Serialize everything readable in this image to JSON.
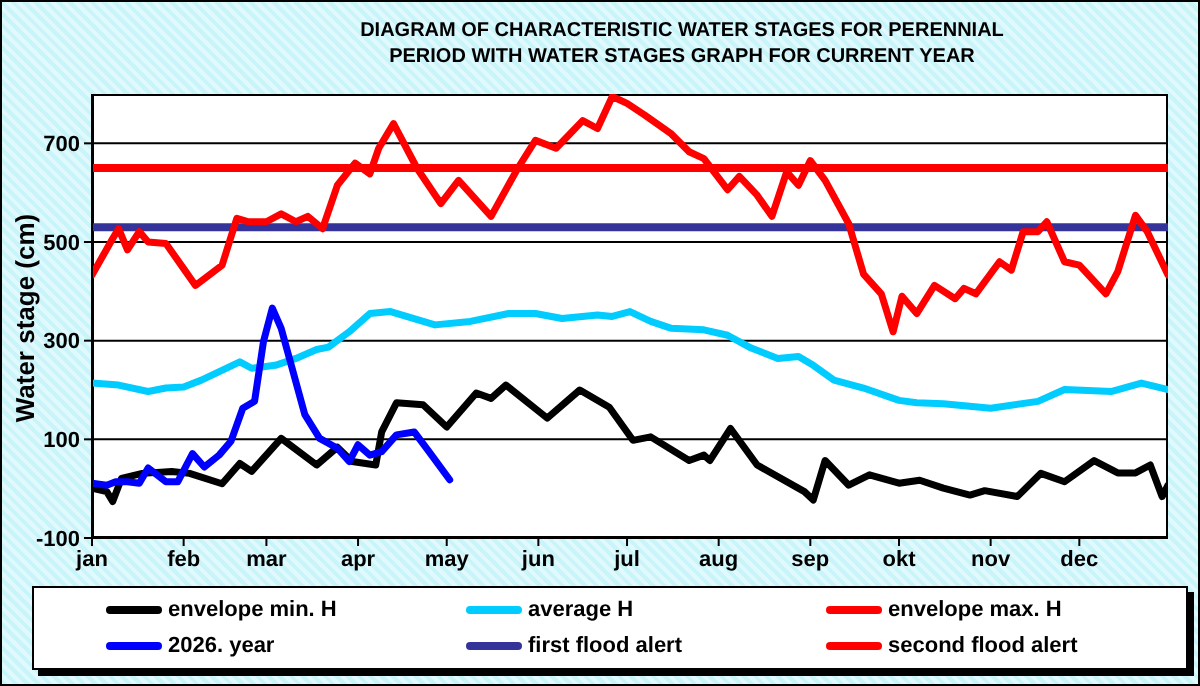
{
  "chart_data": {
    "type": "line",
    "title": "DIAGRAM OF CHARACTERISTIC WATER STAGES FOR PERENNIAL PERIOD WITH WATER STAGES GRAPH FOR CURRENT YEAR",
    "ylabel": "Water stage (cm)",
    "xlim": [
      "--01-01",
      "--12-31"
    ],
    "xticks": [
      {
        "value": "--01-01",
        "label": "jan"
      },
      {
        "value": "--02-01",
        "label": "feb"
      },
      {
        "value": "--03-01",
        "label": "mar"
      },
      {
        "value": "--04-01",
        "label": "apr"
      },
      {
        "value": "--05-01",
        "label": "may"
      },
      {
        "value": "--06-01",
        "label": "jun"
      },
      {
        "value": "--07-01",
        "label": "jul"
      },
      {
        "value": "--08-01",
        "label": "aug"
      },
      {
        "value": "--09-01",
        "label": "sep"
      },
      {
        "value": "--10-01",
        "label": "okt"
      },
      {
        "value": "--11-01",
        "label": "nov"
      },
      {
        "value": "--12-01",
        "label": "dec"
      }
    ],
    "ylim": [
      -100,
      800
    ],
    "yticks": [
      -100,
      100,
      300,
      500,
      700
    ],
    "grid": "y",
    "legend": "bottom",
    "marker": "none",
    "line_style": "solid",
    "series": [
      {
        "name": "envelope min. H",
        "color": "#000000",
        "x": [
          "--01-01",
          "--01-06",
          "--01-08",
          "--01-11",
          "--01-18",
          "--01-28",
          "--02-03",
          "--02-14",
          "--02-20",
          "--02-24",
          "--03-06",
          "--03-18",
          "--03-25",
          "--03-30",
          "--04-07",
          "--04-09",
          "--04-14",
          "--04-23",
          "--05-01",
          "--05-11",
          "--05-16",
          "--05-21",
          "--06-04",
          "--06-15",
          "--06-25",
          "--07-03",
          "--07-09",
          "--07-22",
          "--07-27",
          "--07-29",
          "--08-05",
          "--08-14",
          "--08-30",
          "--09-02",
          "--09-06",
          "--09-14",
          "--09-21",
          "--10-01",
          "--10-08",
          "--10-16",
          "--10-25",
          "--10-30",
          "--11-10",
          "--11-18",
          "--11-26",
          "--12-06",
          "--12-14",
          "--12-20",
          "--12-25",
          "--12-29",
          "--12-31"
        ],
        "values": [
          1,
          -6,
          -26,
          21,
          31,
          35,
          31,
          10,
          51,
          35,
          102,
          48,
          84,
          55,
          48,
          115,
          174,
          170,
          125,
          194,
          183,
          210,
          143,
          200,
          165,
          98,
          105,
          57,
          68,
          57,
          122,
          48,
          -6,
          -23,
          57,
          7,
          28,
          11,
          17,
          1,
          -13,
          -4,
          -16,
          31,
          14,
          57,
          32,
          32,
          48,
          -16,
          7
        ]
      },
      {
        "name": "average H",
        "color": "#00ccff",
        "x": [
          "--01-01",
          "--01-10",
          "--01-20",
          "--01-26",
          "--02-01",
          "--02-07",
          "--02-20",
          "--02-24",
          "--03-04",
          "--03-11",
          "--03-18",
          "--03-22",
          "--03-29",
          "--04-05",
          "--04-12",
          "--04-27",
          "--05-09",
          "--05-22",
          "--05-31",
          "--06-09",
          "--06-21",
          "--06-26",
          "--07-02",
          "--07-09",
          "--07-16",
          "--07-27",
          "--08-04",
          "--08-12",
          "--08-21",
          "--08-28",
          "--09-02",
          "--09-09",
          "--09-19",
          "--10-01",
          "--10-07",
          "--10-16",
          "--11-01",
          "--11-17",
          "--11-26",
          "--12-12",
          "--12-22",
          "--12-31"
        ],
        "values": [
          214,
          210,
          197,
          204,
          206,
          220,
          257,
          244,
          250,
          264,
          282,
          287,
          318,
          355,
          359,
          332,
          339,
          355,
          355,
          345,
          352,
          349,
          359,
          339,
          325,
          322,
          311,
          285,
          264,
          268,
          250,
          220,
          204,
          179,
          174,
          172,
          163,
          177,
          201,
          197,
          214,
          201
        ]
      },
      {
        "name": "envelope max. H",
        "color": "#ff0000",
        "x": [
          "--01-01",
          "--01-08",
          "--01-10",
          "--01-13",
          "--01-17",
          "--01-20",
          "--01-26",
          "--02-01",
          "--02-05",
          "--02-14",
          "--02-19",
          "--02-23",
          "--03-01",
          "--03-06",
          "--03-11",
          "--03-15",
          "--03-20",
          "--03-25",
          "--03-31",
          "--04-05",
          "--04-08",
          "--04-13",
          "--04-21",
          "--04-29",
          "--05-05",
          "--05-16",
          "--05-25",
          "--05-31",
          "--06-07",
          "--06-16",
          "--06-21",
          "--06-26",
          "--07-01",
          "--07-07",
          "--07-16",
          "--07-22",
          "--07-27",
          "--08-04",
          "--08-08",
          "--08-14",
          "--08-19",
          "--08-24",
          "--08-28",
          "--09-01",
          "--09-06",
          "--09-14",
          "--09-19",
          "--09-25",
          "--09-29",
          "--10-02",
          "--10-07",
          "--10-13",
          "--10-20",
          "--10-23",
          "--10-27",
          "--11-04",
          "--11-08",
          "--11-12",
          "--11-17",
          "--11-20",
          "--11-26",
          "--12-01",
          "--12-10",
          "--12-14",
          "--12-20",
          "--12-24",
          "--12-31"
        ],
        "values": [
          433,
          507,
          527,
          484,
          521,
          500,
          497,
          446,
          412,
          453,
          548,
          541,
          541,
          557,
          541,
          552,
          527,
          615,
          660,
          638,
          690,
          740,
          649,
          578,
          625,
          552,
          649,
          706,
          690,
          746,
          730,
          795,
          781,
          757,
          719,
          683,
          669,
          606,
          633,
          595,
          552,
          642,
          615,
          665,
          625,
          537,
          435,
          395,
          318,
          390,
          355,
          412,
          385,
          406,
          395,
          460,
          443,
          521,
          521,
          541,
          460,
          453,
          395,
          440,
          554,
          521,
          433
        ]
      },
      {
        "name": "2026. year",
        "color": "#0000ff",
        "x": [
          "--01-01",
          "--01-06",
          "--01-09",
          "--01-13",
          "--01-17",
          "--01-20",
          "--01-26",
          "--01-30",
          "--02-04",
          "--02-08",
          "--02-13",
          "--02-17",
          "--02-21",
          "--02-25",
          "--02-28",
          "--03-03",
          "--03-06",
          "--03-14",
          "--03-19",
          "--03-25",
          "--03-29",
          "--04-01",
          "--04-05",
          "--04-09",
          "--04-14",
          "--04-20",
          "--04-25",
          "--05-02"
        ],
        "values": [
          11,
          7,
          14,
          14,
          11,
          42,
          14,
          14,
          71,
          44,
          68,
          96,
          163,
          177,
          298,
          366,
          325,
          150,
          102,
          82,
          55,
          89,
          68,
          75,
          109,
          115,
          75,
          18
        ]
      }
    ],
    "ref_lines": [
      {
        "axis": "y",
        "value": 530,
        "label": "first flood alert",
        "color": "#333399"
      },
      {
        "axis": "y",
        "value": 650,
        "label": "second flood alert",
        "color": "#ff0000"
      }
    ]
  }
}
